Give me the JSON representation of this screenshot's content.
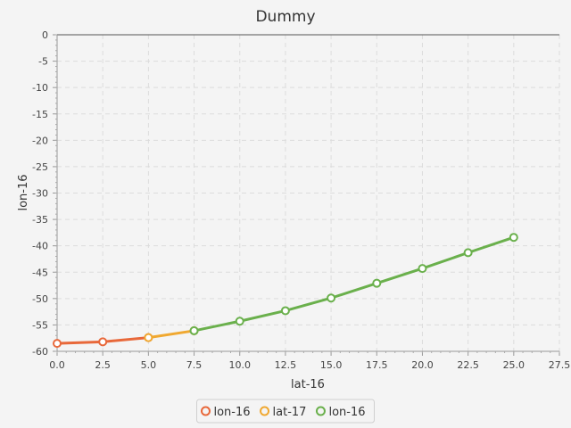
{
  "chart_data": {
    "type": "line",
    "title": "Dummy",
    "xlabel": "lat-16",
    "ylabel": "lon-16",
    "xlim": [
      0,
      27.5
    ],
    "ylim": [
      -60,
      0
    ],
    "xticks": [
      "0.0",
      "2.5",
      "5.0",
      "7.5",
      "10.0",
      "12.5",
      "15.0",
      "17.5",
      "20.0",
      "22.5",
      "25.0",
      "27.5"
    ],
    "yticks": [
      "0",
      "-5",
      "-10",
      "-15",
      "-20",
      "-25",
      "-30",
      "-35",
      "-40",
      "-45",
      "-50",
      "-55",
      "-60"
    ],
    "grid": true,
    "legend_position": "bottom-center",
    "series": [
      {
        "name": "lon-16",
        "color": "#e8683a",
        "x": [
          0.0,
          2.5,
          5.0
        ],
        "y": [
          -58.5,
          -58.2,
          -57.4
        ]
      },
      {
        "name": "lat-17",
        "color": "#f0a830",
        "x": [
          5.0,
          7.5
        ],
        "y": [
          -57.4,
          -56.1
        ]
      },
      {
        "name": "lon-16",
        "color": "#6ab04c",
        "x": [
          7.5,
          10.0,
          12.5,
          15.0,
          17.5,
          20.0,
          22.5,
          25.0
        ],
        "y": [
          -56.1,
          -54.3,
          -52.3,
          -49.9,
          -47.1,
          -44.3,
          -41.3,
          -38.4
        ]
      }
    ]
  }
}
